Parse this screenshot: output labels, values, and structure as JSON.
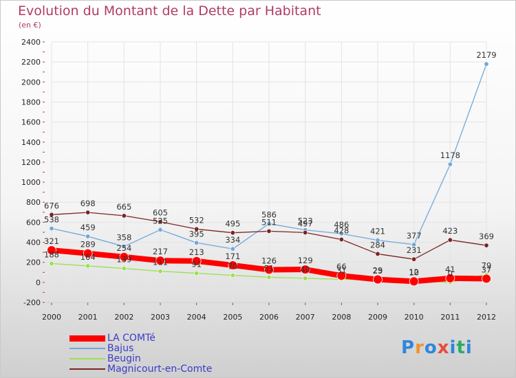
{
  "chart_data": {
    "type": "line",
    "title": "Evolution du Montant de la Dette par Habitant",
    "subtitle": "(en €)",
    "xlabel": "",
    "ylabel": "",
    "x": [
      "2000",
      "2001",
      "2002",
      "2003",
      "2004",
      "2005",
      "2006",
      "2007",
      "2008",
      "2009",
      "2010",
      "2011",
      "2012"
    ],
    "ylim": [
      -200,
      2400
    ],
    "yticks": [
      -200,
      0,
      200,
      400,
      600,
      800,
      1000,
      1200,
      1400,
      1600,
      1800,
      2000,
      2200,
      2400
    ],
    "ytick_labels": [
      "-200",
      "0",
      "200",
      "400",
      "600",
      "800",
      "1000",
      "1200",
      "1400",
      "1600",
      "1800",
      "2000",
      "2200",
      "2400"
    ],
    "grid": true,
    "legend": "bottom-left",
    "series": [
      {
        "name": "LA COMTé",
        "color": "#ff0000",
        "values": [
          321,
          289,
          254,
          217,
          213,
          171,
          126,
          129,
          66,
          29,
          10,
          41,
          37
        ],
        "labels": [
          "321",
          "289",
          "254",
          "217",
          "213",
          "171",
          "126",
          "129",
          "66",
          "29",
          "10",
          "41",
          "37"
        ]
      },
      {
        "name": "Bajus",
        "color": "#6fa8dc",
        "values": [
          538,
          459,
          358,
          525,
          395,
          334,
          586,
          523,
          486,
          421,
          377,
          1178,
          2179
        ],
        "labels": [
          "538",
          "459",
          "358",
          "525",
          "395",
          "334",
          "586",
          "523",
          "486",
          "421",
          "377",
          "1178",
          "2179"
        ]
      },
      {
        "name": "Beugin",
        "color": "#99e052",
        "values": [
          188,
          164,
          139,
          111,
          91,
          70,
          51,
          40,
          31,
          25,
          12,
          0,
          79
        ],
        "labels": [
          "188",
          "164",
          "139",
          "111",
          "91",
          "70",
          "51",
          "40",
          "31",
          "25",
          "12",
          "0",
          "79"
        ]
      },
      {
        "name": "Magnicourt-en-Comte",
        "color": "#7a2323",
        "values": [
          676,
          698,
          665,
          605,
          532,
          495,
          511,
          497,
          428,
          284,
          231,
          423,
          369
        ],
        "labels": [
          "676",
          "698",
          "665",
          "605",
          "532",
          "495",
          "511",
          "497",
          "428",
          "284",
          "231",
          "423",
          "369"
        ]
      }
    ]
  },
  "brand": {
    "letters": [
      "P",
      "r",
      "o",
      "x",
      "i",
      "t",
      "i"
    ],
    "colors": [
      "#2e86de",
      "#f0932b",
      "#2e86de",
      "#e84c3d",
      "#2e86de",
      "#27ae60",
      "#2e86de"
    ]
  }
}
